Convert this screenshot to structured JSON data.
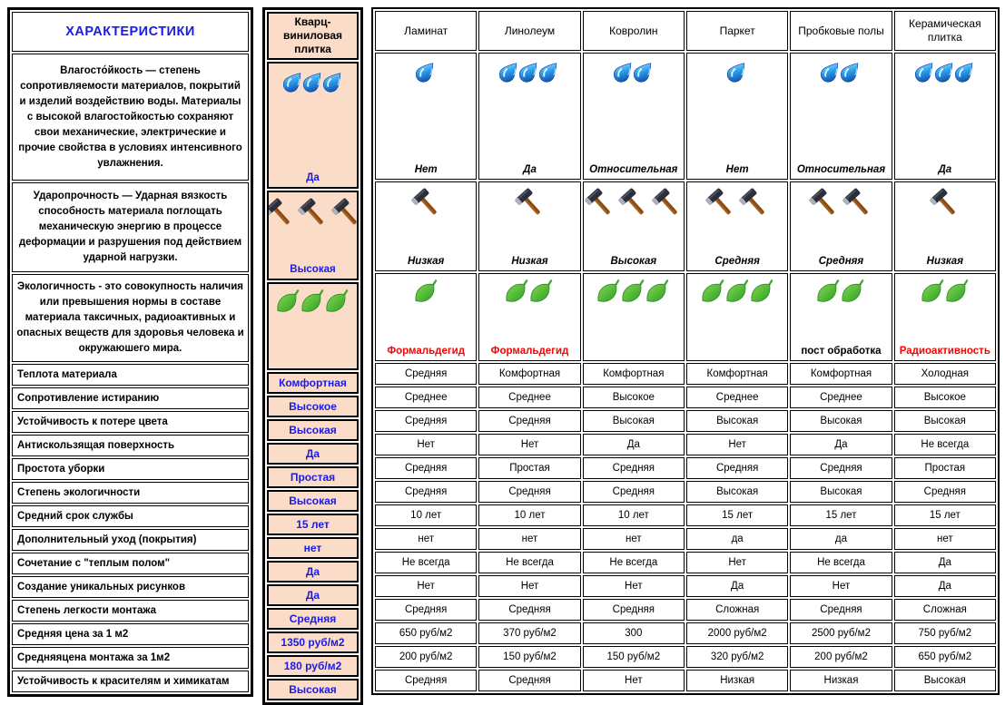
{
  "title": "ХАРАКТЕРИСТИКИ",
  "colors": {
    "value_blue": "#1a1ae6",
    "alert_red": "#ff0000",
    "quartz_peach": "#fbdcc8",
    "border": "#000000"
  },
  "columns": [
    "Кварц-виниловая плитка",
    "Ламинат",
    "Линолеум",
    "Ковролин",
    "Паркет",
    "Пробковые полы",
    "Керамическая плитка"
  ],
  "icon_rows": [
    {
      "id": "moisture-resistance",
      "icon": "drop-icon",
      "label_italic": true,
      "description": "Влагосто́йкость — степень сопротивляемости материалов, покрытий и изделий воздействию воды. Материалы с высокой влагостойкостью сохраняют свои механические, электрические и прочие свойства в условиях интенсивного увлажнения.",
      "cells": [
        {
          "count": 3,
          "label": "Да"
        },
        {
          "count": 1,
          "label": "Нет"
        },
        {
          "count": 3,
          "label": "Да"
        },
        {
          "count": 2,
          "label": "Относительная"
        },
        {
          "count": 1,
          "label": "Нет"
        },
        {
          "count": 2,
          "label": "Относительная"
        },
        {
          "count": 3,
          "label": "Да"
        }
      ]
    },
    {
      "id": "impact-strength",
      "icon": "hammer-icon",
      "label_italic": true,
      "description": "Ударопрочность — Ударная вязкость способность материала поглощать механическую энергию в процессе деформации и разрушения под действием ударной нагрузки.",
      "cells": [
        {
          "count": 3,
          "label": "Высокая"
        },
        {
          "count": 1,
          "label": "Низкая"
        },
        {
          "count": 1,
          "label": "Низкая"
        },
        {
          "count": 3,
          "label": "Высокая"
        },
        {
          "count": 2,
          "label": "Средняя"
        },
        {
          "count": 2,
          "label": "Средняя"
        },
        {
          "count": 1,
          "label": "Низкая"
        }
      ]
    },
    {
      "id": "eco-friendliness",
      "icon": "leaf-icon",
      "label_italic": false,
      "description": "Экологичность - это совокупность наличия или превышения нормы в составе материала таксичных, радиоактивных и опасных веществ для здоровья человека и окружаюшего мира.",
      "cells": [
        {
          "count": 3,
          "label": ""
        },
        {
          "count": 1,
          "label": "Формальдегид",
          "alert": true
        },
        {
          "count": 2,
          "label": "Формальдегид",
          "alert": true
        },
        {
          "count": 3,
          "label": ""
        },
        {
          "count": 3,
          "label": ""
        },
        {
          "count": 2,
          "label": "пост обработка"
        },
        {
          "count": 2,
          "label": "Радиоактивность",
          "alert": true
        }
      ]
    }
  ],
  "simple_rows": [
    {
      "label": "Теплота материала",
      "values": [
        "Комфортная",
        "Средняя",
        "Комфортная",
        "Комфортная",
        "Комфортная",
        "Комфортная",
        "Холодная"
      ]
    },
    {
      "label": "Сопротивление истиранию",
      "values": [
        "Высокое",
        "Среднее",
        "Среднее",
        "Высокое",
        "Среднее",
        "Среднее",
        "Высокое"
      ]
    },
    {
      "label": "Устойчивость к потере цвета",
      "values": [
        "Высокая",
        "Средняя",
        "Средняя",
        "Высокая",
        "Высокая",
        "Высокая",
        "Высокая"
      ]
    },
    {
      "label": "Антискользящая поверхность",
      "values": [
        "Да",
        "Нет",
        "Нет",
        "Да",
        "Нет",
        "Да",
        "Не всегда"
      ]
    },
    {
      "label": "Простота уборки",
      "values": [
        "Простая",
        "Средняя",
        "Простая",
        "Средняя",
        "Средняя",
        "Средняя",
        "Простая"
      ]
    },
    {
      "label": "Степень экологичности",
      "values": [
        "Высокая",
        "Средняя",
        "Средняя",
        "Средняя",
        "Высокая",
        "Высокая",
        "Средняя"
      ]
    },
    {
      "label": "Средний срок службы",
      "values": [
        "15 лет",
        "10 лет",
        "10 лет",
        "10 лет",
        "15 лет",
        "15 лет",
        "15 лет"
      ]
    },
    {
      "label": "Дополнительный уход (покрытия)",
      "values": [
        "нет",
        "нет",
        "нет",
        "нет",
        "да",
        "да",
        "нет"
      ]
    },
    {
      "label": "Сочетание с \"теплым полом\"",
      "values": [
        "Да",
        "Не всегда",
        "Не всегда",
        "Не всегда",
        "Нет",
        "Не всегда",
        "Да"
      ]
    },
    {
      "label": "Создание уникальных рисунков",
      "values": [
        "Да",
        "Нет",
        "Нет",
        "Нет",
        "Да",
        "Нет",
        "Да"
      ]
    },
    {
      "label": "Степень легкости монтажа",
      "values": [
        "Средняя",
        "Средняя",
        "Средняя",
        "Средняя",
        "Сложная",
        "Средняя",
        "Сложная"
      ]
    },
    {
      "label": "Средняя цена за 1 м2",
      "values": [
        "1350 руб/м2",
        "650 руб/м2",
        "370 руб/м2",
        "300",
        "2000 руб/м2",
        "2500 руб/м2",
        "750 руб/м2"
      ]
    },
    {
      "label": "Средняяцена монтажа за 1м2",
      "values": [
        "180 руб/м2",
        "200 руб/м2",
        "150 руб/м2",
        "150 руб/м2",
        "320 руб/м2",
        "200 руб/м2",
        "650 руб/м2"
      ]
    },
    {
      "label": "Устойчивость к красителям и химикатам",
      "values": [
        "Высокая",
        "Средняя",
        "Средняя",
        "Нет",
        "Низкая",
        "Низкая",
        "Высокая"
      ]
    }
  ]
}
